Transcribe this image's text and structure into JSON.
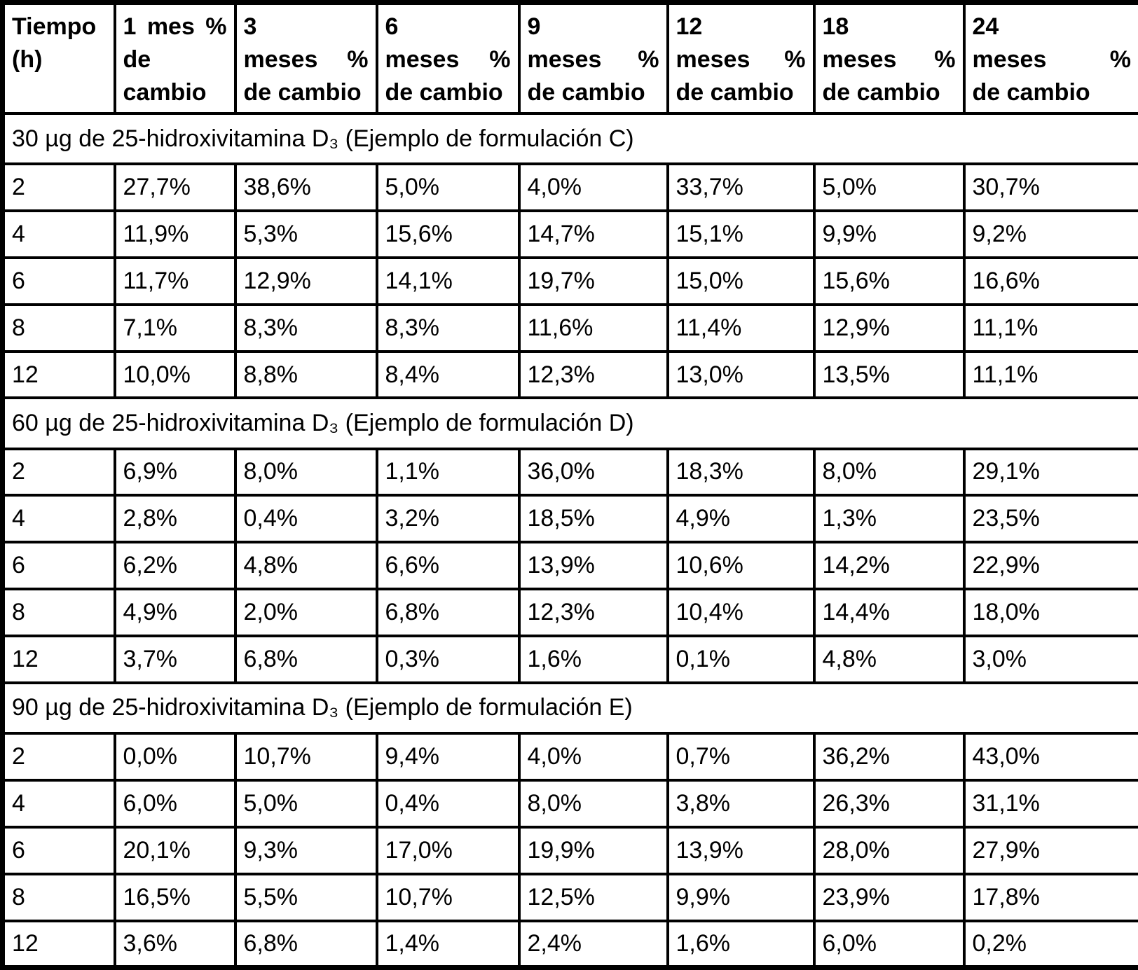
{
  "table": {
    "columns": [
      {
        "lines": [
          "Tiempo",
          "(h)"
        ]
      },
      {
        "lines": [
          "1 mes %",
          "de",
          "cambio"
        ]
      },
      {
        "lines": [
          "3",
          "meses %",
          "de cambio"
        ]
      },
      {
        "lines": [
          "6",
          "meses %",
          "de cambio"
        ]
      },
      {
        "lines": [
          "9",
          "meses %",
          "de cambio"
        ]
      },
      {
        "lines": [
          "12",
          "meses %",
          "de cambio"
        ]
      },
      {
        "lines": [
          "18",
          "meses %",
          "de cambio"
        ]
      },
      {
        "lines": [
          "24",
          "meses %",
          "de cambio"
        ]
      }
    ],
    "sections": [
      {
        "title": "30 µg de 25-hidroxivitamina D₃ (Ejemplo de formulación C)",
        "rows": [
          [
            "2",
            "27,7%",
            "38,6%",
            "5,0%",
            "4,0%",
            "33,7%",
            "5,0%",
            "30,7%"
          ],
          [
            "4",
            "11,9%",
            "5,3%",
            "15,6%",
            "14,7%",
            "15,1%",
            "9,9%",
            "9,2%"
          ],
          [
            "6",
            "11,7%",
            "12,9%",
            "14,1%",
            "19,7%",
            "15,0%",
            "15,6%",
            "16,6%"
          ],
          [
            "8",
            "7,1%",
            "8,3%",
            "8,3%",
            "11,6%",
            "11,4%",
            "12,9%",
            "11,1%"
          ],
          [
            "12",
            "10,0%",
            "8,8%",
            "8,4%",
            "12,3%",
            "13,0%",
            "13,5%",
            "11,1%"
          ]
        ]
      },
      {
        "title": "60 µg de 25-hidroxivitamina D₃ (Ejemplo de formulación D)",
        "rows": [
          [
            "2",
            "6,9%",
            "8,0%",
            "1,1%",
            "36,0%",
            "18,3%",
            "8,0%",
            "29,1%"
          ],
          [
            "4",
            "2,8%",
            "0,4%",
            "3,2%",
            "18,5%",
            "4,9%",
            "1,3%",
            "23,5%"
          ],
          [
            "6",
            "6,2%",
            "4,8%",
            "6,6%",
            "13,9%",
            "10,6%",
            "14,2%",
            "22,9%"
          ],
          [
            "8",
            "4,9%",
            "2,0%",
            "6,8%",
            "12,3%",
            "10,4%",
            "14,4%",
            "18,0%"
          ],
          [
            "12",
            "3,7%",
            "6,8%",
            "0,3%",
            "1,6%",
            "0,1%",
            "4,8%",
            "3,0%"
          ]
        ]
      },
      {
        "title": "90 µg de 25-hidroxivitamina D₃ (Ejemplo de formulación E)",
        "rows": [
          [
            "2",
            "0,0%",
            "10,7%",
            "9,4%",
            "4,0%",
            "0,7%",
            "36,2%",
            "43,0%"
          ],
          [
            "4",
            "6,0%",
            "5,0%",
            "0,4%",
            "8,0%",
            "3,8%",
            "26,3%",
            "31,1%"
          ],
          [
            "6",
            "20,1%",
            "9,3%",
            "17,0%",
            "19,9%",
            "13,9%",
            "28,0%",
            "27,9%"
          ],
          [
            "8",
            "16,5%",
            "5,5%",
            "10,7%",
            "12,5%",
            "9,9%",
            "23,9%",
            "17,8%"
          ],
          [
            "12",
            "3,6%",
            "6,8%",
            "1,4%",
            "2,4%",
            "1,6%",
            "6,0%",
            "0,2%"
          ]
        ]
      }
    ]
  },
  "colors": {
    "border": "#000000",
    "text": "#000000",
    "background": "#ffffff"
  }
}
